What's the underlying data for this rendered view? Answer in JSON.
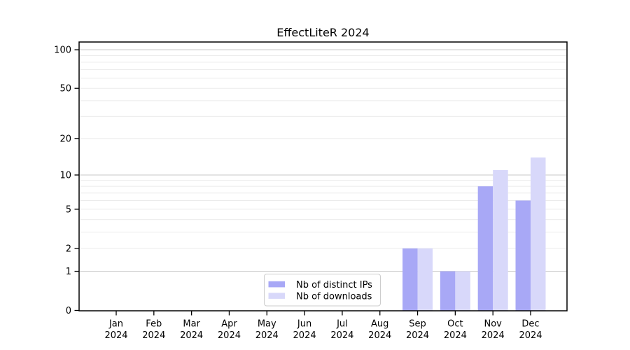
{
  "chart_data": {
    "type": "bar",
    "title": "EffectLiteR 2024",
    "categories": [
      "Jan",
      "Feb",
      "Mar",
      "Apr",
      "May",
      "Jun",
      "Jul",
      "Aug",
      "Sep",
      "Oct",
      "Nov",
      "Dec"
    ],
    "x_tick_second_line": "2024",
    "series": [
      {
        "name": "Nb of distinct IPs",
        "color": "#a8a8f6",
        "values": [
          0,
          0,
          0,
          0,
          0,
          0,
          0,
          0,
          2,
          1,
          8,
          6
        ]
      },
      {
        "name": "Nb of downloads",
        "color": "#d8d8fa",
        "values": [
          0,
          0,
          0,
          0,
          0,
          0,
          0,
          0,
          2,
          1,
          11,
          14
        ]
      }
    ],
    "xlabel": "",
    "ylabel": "",
    "y_scale": "log1p",
    "ylim": [
      0,
      100
    ],
    "y_tick_values": [
      0,
      1,
      2,
      5,
      10,
      20,
      50,
      100
    ],
    "y_grid_minor": [
      2,
      3,
      4,
      5,
      6,
      7,
      8,
      9,
      20,
      30,
      40,
      50,
      60,
      70,
      80,
      90
    ],
    "y_grid_major": [
      1,
      10,
      100
    ],
    "grid": true,
    "legend": {
      "position": "lower-center-inside",
      "entries": [
        "Nb of distinct IPs",
        "Nb of downloads"
      ]
    },
    "colors": {
      "background": "#ffffff",
      "axis": "#000000",
      "text": "#000000",
      "grid_minor": "#ebebeb",
      "grid_major": "#c9c9c9",
      "legend_border": "#cccccc",
      "legend_background": "#ffffff"
    }
  }
}
